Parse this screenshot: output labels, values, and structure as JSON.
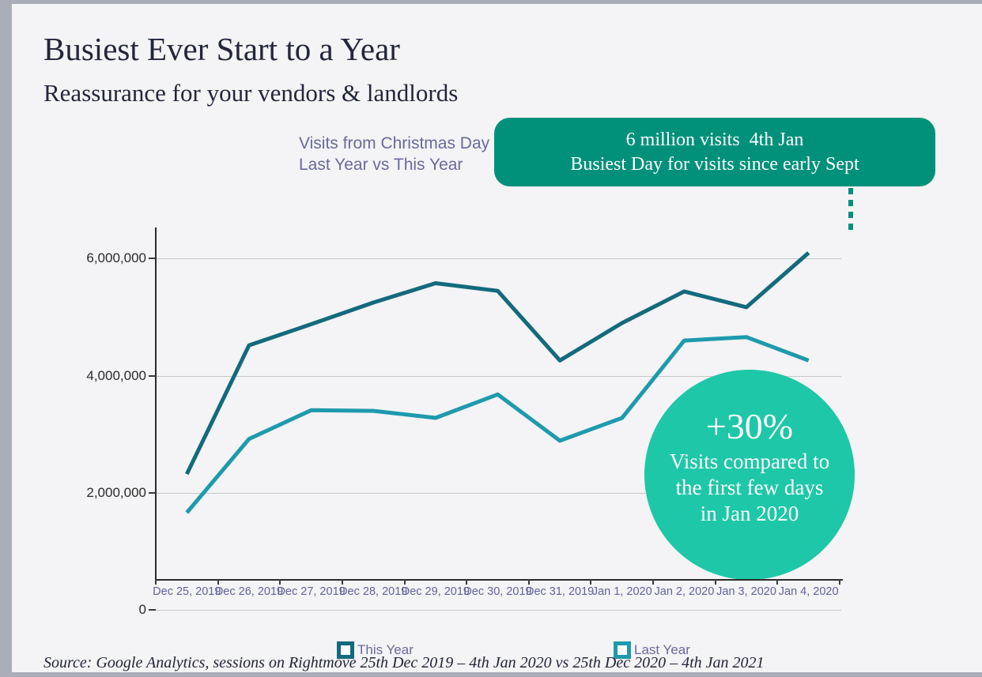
{
  "slide": {
    "title": "Busiest Ever Start to a Year",
    "subtitle": "Reassurance for your vendors & landlords",
    "source": "Source: Google Analytics, sessions on Rightmove 25th Dec 2019 –  4th Jan 2020 vs 25th Dec 2020 – 4th Jan 2021"
  },
  "callout_banner": {
    "line1": "6 million visits  4th Jan",
    "line2": "Busiest Day for visits since early Sept",
    "color": "#01917b"
  },
  "badge_circle": {
    "headline": "+30%",
    "body": "Visits compared to the first few days in Jan 2020",
    "color": "#1ec7a8"
  },
  "chart_data": {
    "type": "line",
    "title_line1": "Visits from Christmas Day",
    "title_line2": "Last Year vs This Year",
    "title_color": "#6a6a9c",
    "categories": [
      "Dec 25, 2019",
      "Dec 26, 2019",
      "Dec 27, 2019",
      "Dec 28, 2019",
      "Dec 29, 2019",
      "Dec 30, 2019",
      "Dec 31, 2019",
      "Jan 1, 2020",
      "Jan 2, 2020",
      "Jan 3, 2020",
      "Jan 4, 2020"
    ],
    "series": [
      {
        "name": "This Year",
        "color": "#136A7D",
        "values": [
          2320000,
          4520000,
          4880000,
          5250000,
          5580000,
          5450000,
          4260000,
          4900000,
          5440000,
          5170000,
          6100000
        ]
      },
      {
        "name": "Last Year",
        "color": "#1E9AAD",
        "values": [
          1660000,
          2920000,
          3410000,
          3400000,
          3280000,
          3680000,
          2890000,
          3280000,
          4600000,
          4660000,
          4260000
        ]
      }
    ],
    "y_axis": {
      "ticks": [
        0,
        2000000,
        4000000,
        6000000
      ],
      "tick_labels": [
        "0",
        "2,000,000",
        "4,000,000",
        "6,000,000"
      ],
      "range": [
        0,
        6500000
      ]
    },
    "grid": true,
    "legend_position": "bottom"
  }
}
